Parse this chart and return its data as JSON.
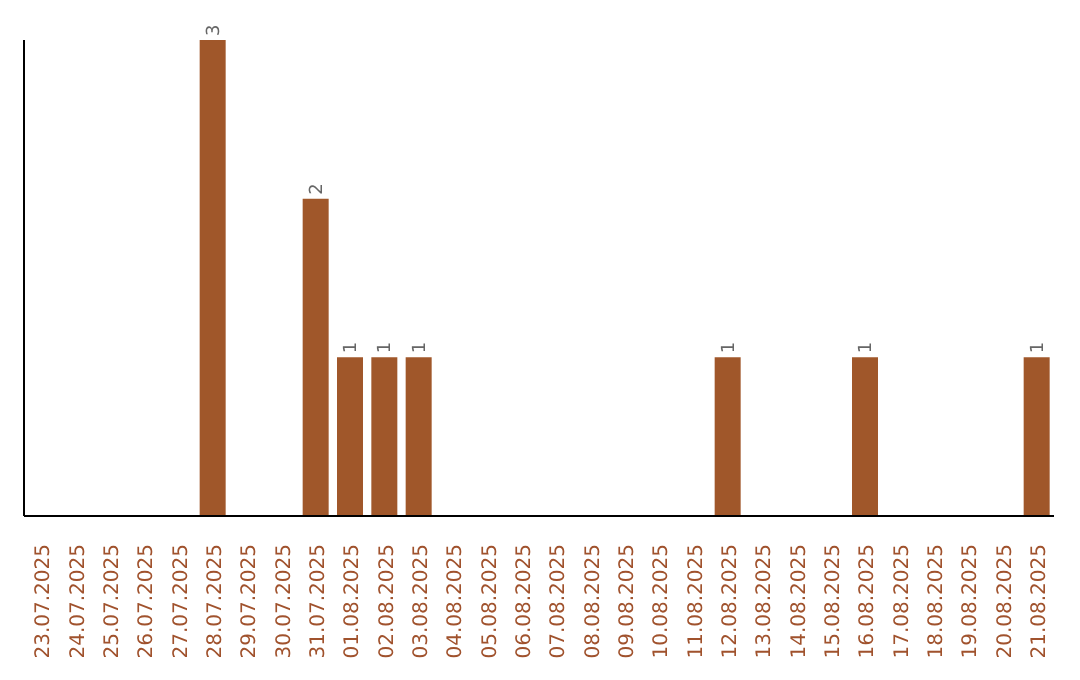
{
  "chart_data": {
    "type": "bar",
    "categories": [
      "23.07.2025",
      "24.07.2025",
      "25.07.2025",
      "26.07.2025",
      "27.07.2025",
      "28.07.2025",
      "29.07.2025",
      "30.07.2025",
      "31.07.2025",
      "01.08.2025",
      "02.08.2025",
      "03.08.2025",
      "04.08.2025",
      "05.08.2025",
      "06.08.2025",
      "07.08.2025",
      "08.08.2025",
      "09.08.2025",
      "10.08.2025",
      "11.08.2025",
      "12.08.2025",
      "13.08.2025",
      "14.08.2025",
      "15.08.2025",
      "16.08.2025",
      "17.08.2025",
      "18.08.2025",
      "19.08.2025",
      "20.08.2025",
      "21.08.2025"
    ],
    "values": [
      0,
      0,
      0,
      0,
      0,
      3,
      0,
      0,
      2,
      1,
      1,
      1,
      0,
      0,
      0,
      0,
      0,
      0,
      0,
      0,
      1,
      0,
      0,
      0,
      1,
      0,
      0,
      0,
      0,
      1
    ],
    "value_labels": [
      null,
      null,
      null,
      null,
      null,
      "3",
      null,
      null,
      "2",
      "1",
      "1",
      "1",
      null,
      null,
      null,
      null,
      null,
      null,
      null,
      null,
      "1",
      null,
      null,
      null,
      "1",
      null,
      null,
      null,
      null,
      "1"
    ],
    "color": "#a0572a",
    "tick_labels": "x"
  }
}
